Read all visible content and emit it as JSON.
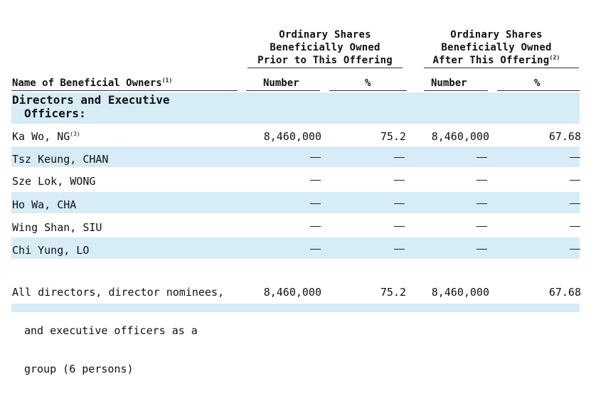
{
  "header": {
    "prior": [
      "Ordinary Shares",
      "Beneficially Owned",
      "Prior to This Offering"
    ],
    "after": [
      "Ordinary Shares",
      "Beneficially Owned",
      "After This Offering"
    ],
    "after_footnote": "(2)"
  },
  "columns": {
    "name": "Name of Beneficial Owners",
    "name_footnote": "(1)",
    "number_prior": "Number",
    "pct_prior": "%",
    "number_after": "Number",
    "pct_after": "%"
  },
  "section_title": [
    "Directors and Executive",
    "Officers:"
  ],
  "rows": [
    {
      "name": "Ka Wo, NG",
      "footnote": "(3)",
      "num_prior": "8,460,000",
      "pct_prior": "75.2",
      "num_after": "8,460,000",
      "pct_after": "67.68"
    },
    {
      "name": "Tsz Keung, CHAN",
      "num_prior": "—",
      "pct_prior": "—",
      "num_after": "—",
      "pct_after": "—"
    },
    {
      "name": "Sze Lok, WONG",
      "num_prior": "—",
      "pct_prior": "—",
      "num_after": "—",
      "pct_after": "—"
    },
    {
      "name": "Ho Wa, CHA",
      "num_prior": "—",
      "pct_prior": "—",
      "num_after": "—",
      "pct_after": "—"
    },
    {
      "name": "Wing Shan, SIU",
      "num_prior": "—",
      "pct_prior": "—",
      "num_after": "—",
      "pct_after": "—"
    },
    {
      "name": "Chi Yung, LO",
      "num_prior": "—",
      "pct_prior": "—",
      "num_after": "—",
      "pct_after": "—"
    }
  ],
  "total": {
    "name": [
      "All directors, director nominees,",
      "and executive officers as a",
      "group (6 persons)"
    ],
    "num_prior": "8,460,000",
    "pct_prior": "75.2",
    "num_after": "8,460,000",
    "pct_after": "67.68"
  },
  "colors": {
    "band": "#d6ecf7",
    "text": "#111111",
    "rule": "#333333"
  }
}
